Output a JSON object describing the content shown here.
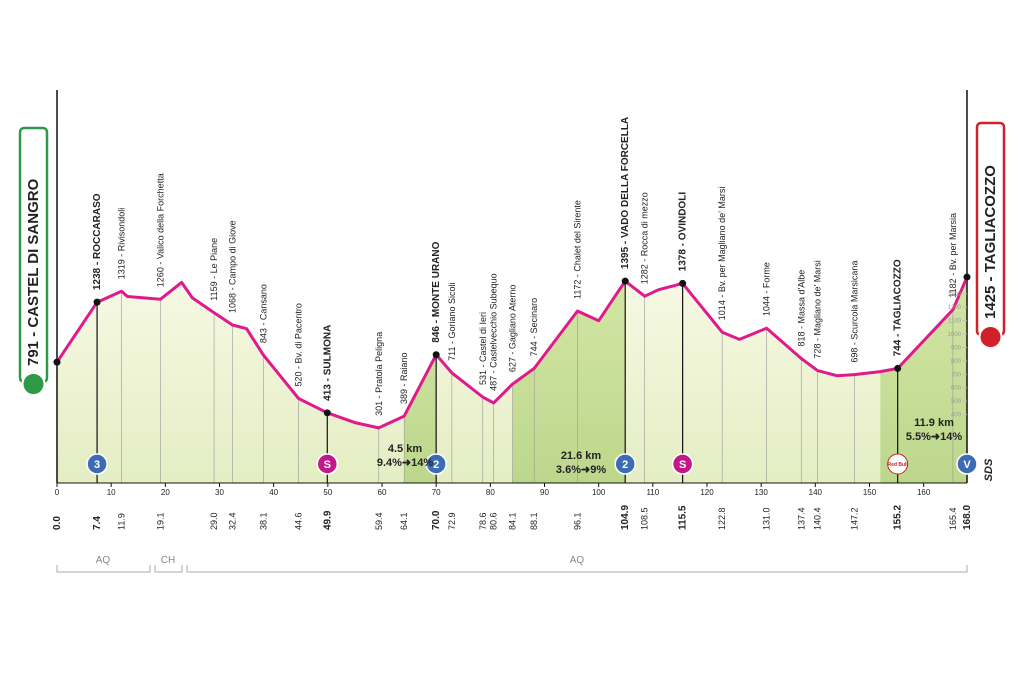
{
  "chart_data": {
    "type": "area",
    "x": [
      0,
      7.4,
      11.9,
      13,
      19.1,
      23,
      25,
      29.0,
      32.4,
      35,
      38.1,
      44.6,
      49.9,
      55,
      59.4,
      64.1,
      70.0,
      72.9,
      78.6,
      80.6,
      84.1,
      88.1,
      96.1,
      100,
      104.9,
      108.5,
      111,
      115.5,
      122.8,
      126,
      131.0,
      137.4,
      140.4,
      144,
      147.2,
      152,
      155.2,
      165.4,
      168.0
    ],
    "values": [
      791,
      1238,
      1319,
      1280,
      1260,
      1385,
      1270,
      1159,
      1068,
      1040,
      843,
      520,
      413,
      340,
      301,
      389,
      846,
      711,
      531,
      487,
      627,
      744,
      1172,
      1100,
      1395,
      1282,
      1330,
      1378,
      1014,
      960,
      1044,
      818,
      728,
      690,
      698,
      720,
      744,
      1182,
      1425
    ],
    "km_labels": [
      "0.0",
      "7.4",
      "11.9",
      null,
      "19.1",
      null,
      null,
      "29.0",
      "32.4",
      null,
      "38.1",
      "44.6",
      "49.9",
      null,
      "59.4",
      "64.1",
      "70.0",
      "72.9",
      "78.6",
      "80.6",
      "84.1",
      "88.1",
      "96.1",
      null,
      "104.9",
      "108.5",
      null,
      "115.5",
      "122.8",
      null,
      "131.0",
      "137.4",
      "140.4",
      null,
      "147.2",
      null,
      "155.2",
      "165.4",
      "168.0"
    ],
    "labels": [
      "791 - CASTEL DI SANGRO",
      "1238 - ROCCARASO",
      "1319 - Rivisondoli",
      null,
      "1260 - Valico della Forchetta",
      null,
      null,
      "1159 - Le Piane",
      "1068 - Campo di Giove",
      null,
      "843 - Cansano",
      "520 - Bv. di Pacentro",
      "413 - SULMONA",
      null,
      "301 - Pratola Peligna",
      "389 - Raiano",
      "846 - MONTE URANO",
      "711 - Goriano Sicoli",
      "531 - Castel di Ieri",
      "487 - Castelvecchio Subequo",
      "627 - Gagliano Aterno",
      "744 - Secinaro",
      "1172 - Chalet del Sirente",
      null,
      "1395 - VADO DELLA FORCELLA",
      "1282 - Rocca di mezzo",
      null,
      "1378 - OVINDOLI",
      "1014 - Bv. per Magliano de' Marsi",
      null,
      "1044 - Forme",
      "818 - Massa d'Albe",
      "728 - Magliano de' Marsi",
      null,
      "698 - Scurcola Marsicana",
      null,
      "744 - TAGLIACOZZO",
      "1182 - Bv. per Marsia",
      "1425 - TAGLIACOZZO"
    ],
    "color": "#e0198c",
    "xlim": [
      0,
      168
    ],
    "xticks": [
      0,
      10,
      20,
      30,
      40,
      50,
      60,
      70,
      80,
      90,
      100,
      110,
      120,
      130,
      140,
      150,
      160
    ],
    "ylim": [
      -110,
      1500
    ],
    "yticks": [
      400,
      500,
      600,
      700,
      800,
      900,
      1000,
      1100,
      1200,
      1300
    ],
    "badges": [
      "3",
      "S",
      "2",
      "S",
      "2",
      "V"
    ],
    "sponsor": "Red Bull",
    "climbs": [
      [
        "4.5 km",
        "9.4%➜14%"
      ],
      [
        "21.6 km",
        "3.6%➜9%"
      ],
      [
        "11.9 km",
        "5.5%➜14%"
      ]
    ],
    "regions": [
      "AQ",
      "CH",
      "AQ"
    ],
    "logo": "SDS"
  }
}
